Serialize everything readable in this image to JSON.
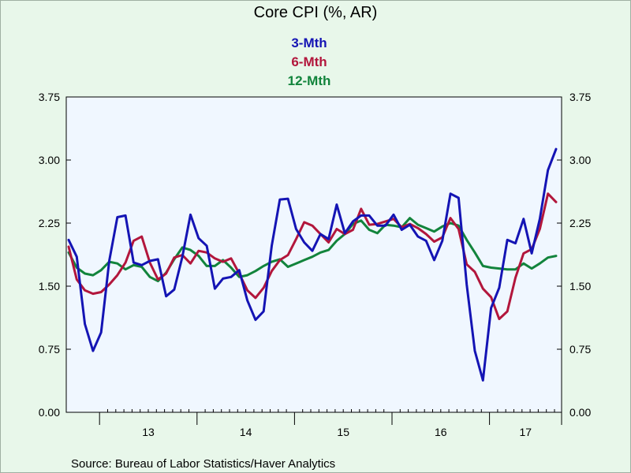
{
  "chart_data": {
    "type": "line",
    "title": "Core CPI (%, AR)",
    "source": "Source:  Bureau of Labor Statistics/Haver Analytics",
    "ylim": [
      0,
      3.75
    ],
    "yticks": [
      "0.00",
      "0.75",
      "1.50",
      "2.25",
      "3.00",
      "3.75"
    ],
    "ytick_values": [
      0,
      0.75,
      1.5,
      2.25,
      3.0,
      3.75
    ],
    "x_tick_labels": [
      "13",
      "14",
      "15",
      "16",
      "17"
    ],
    "x_start": "2012-09",
    "x_end": "2017-11",
    "dual_y_axis": true,
    "grid": false,
    "legend_position": "top-center",
    "series": [
      {
        "name": "3-Mth",
        "color": "#1414b4",
        "values": [
          2.05,
          1.85,
          1.05,
          0.73,
          0.95,
          1.8,
          2.32,
          2.34,
          1.78,
          1.75,
          1.8,
          1.82,
          1.38,
          1.46,
          1.85,
          2.35,
          2.07,
          1.98,
          1.47,
          1.59,
          1.61,
          1.69,
          1.33,
          1.1,
          1.2,
          1.98,
          2.53,
          2.54,
          2.18,
          2.02,
          1.92,
          2.12,
          2.06,
          2.47,
          2.13,
          2.27,
          2.34,
          2.34,
          2.22,
          2.22,
          2.35,
          2.17,
          2.23,
          2.09,
          2.04,
          1.81,
          2.04,
          2.6,
          2.55,
          1.52,
          0.73,
          0.38,
          1.24,
          1.48,
          2.05,
          2.01,
          2.3,
          1.89,
          2.3,
          2.88,
          3.13
        ]
      },
      {
        "name": "6-Mth",
        "color": "#b2163c",
        "values": [
          1.97,
          1.58,
          1.45,
          1.41,
          1.43,
          1.52,
          1.63,
          1.78,
          2.04,
          2.09,
          1.78,
          1.58,
          1.65,
          1.84,
          1.87,
          1.77,
          1.92,
          1.9,
          1.83,
          1.79,
          1.83,
          1.65,
          1.45,
          1.36,
          1.48,
          1.68,
          1.81,
          1.87,
          2.06,
          2.26,
          2.22,
          2.12,
          2.02,
          2.18,
          2.12,
          2.17,
          2.42,
          2.23,
          2.24,
          2.27,
          2.3,
          2.2,
          2.24,
          2.19,
          2.12,
          2.03,
          2.08,
          2.31,
          2.18,
          1.76,
          1.67,
          1.47,
          1.37,
          1.11,
          1.2,
          1.6,
          1.89,
          1.94,
          2.18,
          2.6,
          2.5
        ]
      },
      {
        "name": "12-Mth",
        "color": "#12843c",
        "values": [
          1.9,
          1.72,
          1.65,
          1.63,
          1.69,
          1.79,
          1.77,
          1.7,
          1.75,
          1.73,
          1.61,
          1.56,
          1.66,
          1.82,
          1.96,
          1.93,
          1.86,
          1.74,
          1.74,
          1.81,
          1.72,
          1.61,
          1.63,
          1.68,
          1.74,
          1.79,
          1.82,
          1.73,
          1.77,
          1.81,
          1.85,
          1.9,
          1.93,
          2.04,
          2.12,
          2.24,
          2.28,
          2.17,
          2.13,
          2.23,
          2.22,
          2.2,
          2.31,
          2.23,
          2.19,
          2.15,
          2.21,
          2.25,
          2.22,
          2.05,
          1.9,
          1.74,
          1.72,
          1.71,
          1.7,
          1.7,
          1.77,
          1.71,
          1.77,
          1.84,
          1.86
        ]
      }
    ]
  }
}
